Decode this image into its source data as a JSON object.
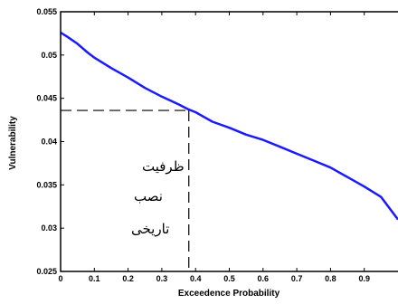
{
  "chart_data": {
    "type": "line",
    "title": "",
    "xlabel": "Exceedence Probability",
    "ylabel": "Vulnerability",
    "xlim": [
      0,
      1
    ],
    "ylim": [
      0.025,
      0.055
    ],
    "xticks": [
      "0",
      "0.1",
      "0.2",
      "0.3",
      "0.4",
      "0.5",
      "0.6",
      "0.7",
      "0.8",
      "0.9"
    ],
    "yticks": [
      "0.025",
      "0.03",
      "0.035",
      "0.04",
      "0.045",
      "0.05",
      "0.055"
    ],
    "grid": false,
    "series": [
      {
        "color": "#1a1aff",
        "x": [
          0,
          0.02,
          0.05,
          0.08,
          0.1,
          0.15,
          0.2,
          0.25,
          0.3,
          0.35,
          0.38,
          0.4,
          0.45,
          0.5,
          0.55,
          0.6,
          0.65,
          0.7,
          0.75,
          0.8,
          0.85,
          0.9,
          0.95,
          1.0
        ],
        "y": [
          0.0526,
          0.0521,
          0.0513,
          0.0503,
          0.0497,
          0.0485,
          0.0474,
          0.0462,
          0.0452,
          0.0443,
          0.0437,
          0.0434,
          0.0423,
          0.0416,
          0.0408,
          0.0402,
          0.0394,
          0.0386,
          0.0378,
          0.037,
          0.0359,
          0.0348,
          0.0336,
          0.031
        ]
      }
    ],
    "reference_point": {
      "x": 0.38,
      "y": 0.0436
    },
    "annotation_lines": [
      "ظرفیت",
      "نصب",
      "تاریخی"
    ]
  }
}
